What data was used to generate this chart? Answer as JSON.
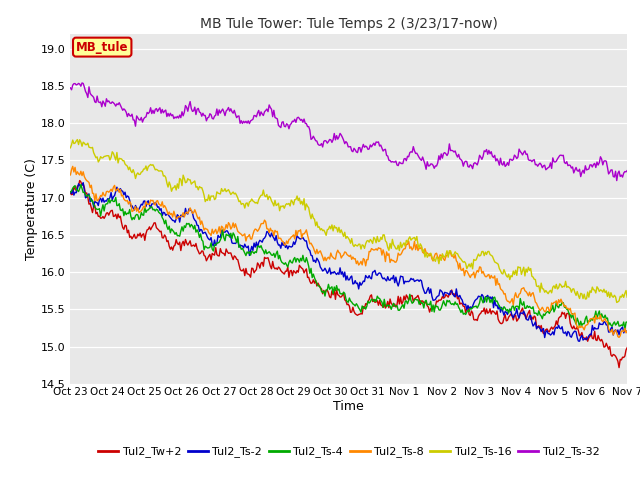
{
  "title": "MB Tule Tower: Tule Temps 2 (3/23/17-now)",
  "xlabel": "Time",
  "ylabel": "Temperature (C)",
  "ylim": [
    14.5,
    19.2
  ],
  "yticks": [
    14.5,
    15.0,
    15.5,
    16.0,
    16.5,
    17.0,
    17.5,
    18.0,
    18.5,
    19.0
  ],
  "legend_label": "MB_tule",
  "legend_box_color": "#ffff99",
  "legend_box_border": "#cc0000",
  "plot_bg_color": "#e8e8e8",
  "fig_bg_color": "#ffffff",
  "series": {
    "Tul2_Tw+2": {
      "color": "#cc0000",
      "lw": 1.0
    },
    "Tul2_Ts-2": {
      "color": "#0000cc",
      "lw": 1.0
    },
    "Tul2_Ts-4": {
      "color": "#00aa00",
      "lw": 1.0
    },
    "Tul2_Ts-8": {
      "color": "#ff8800",
      "lw": 1.0
    },
    "Tul2_Ts-16": {
      "color": "#cccc00",
      "lw": 1.0
    },
    "Tul2_Ts-32": {
      "color": "#aa00cc",
      "lw": 1.0
    }
  },
  "xtick_labels": [
    "Oct 23",
    "Oct 24",
    "Oct 25",
    "Oct 26",
    "Oct 27",
    "Oct 28",
    "Oct 29",
    "Oct 30",
    "Oct 31",
    "Nov 1",
    "Nov 2",
    "Nov 3",
    "Nov 4",
    "Nov 5",
    "Nov 6",
    "Nov 7"
  ],
  "n_points": 480
}
